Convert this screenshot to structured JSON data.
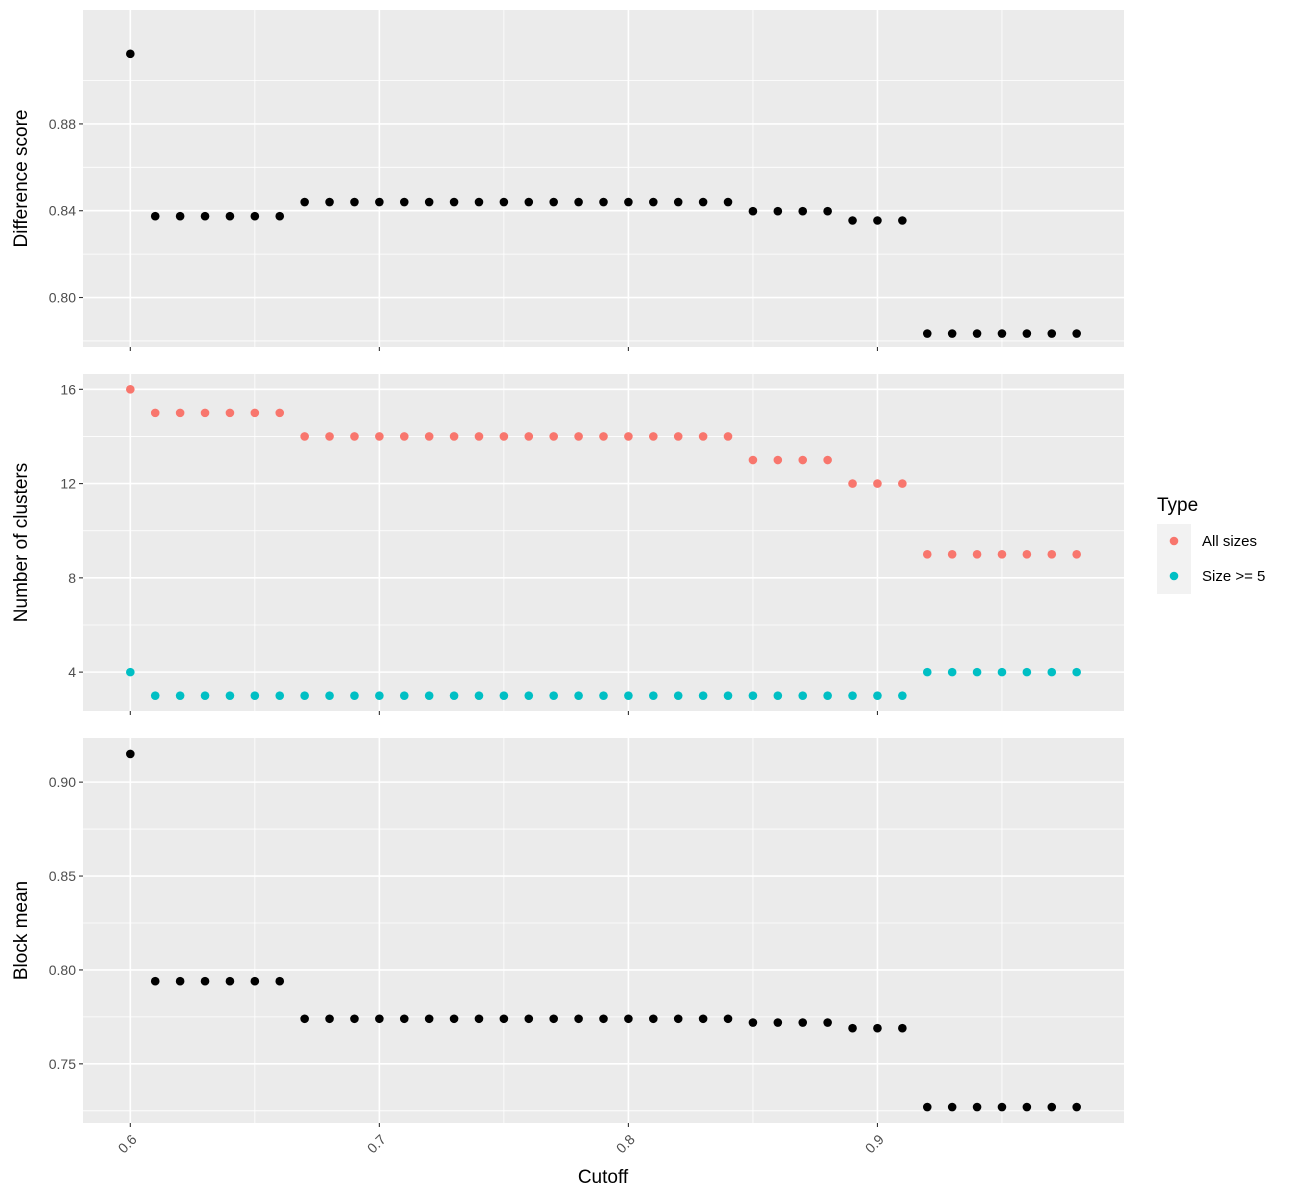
{
  "chart_data": {
    "type": "scatter",
    "x_axis": {
      "label": "Cutoff",
      "range": [
        0.581,
        0.999
      ],
      "ticks": [
        0.6,
        0.7,
        0.8,
        0.9
      ],
      "tick_labels": [
        "0.6",
        "0.7",
        "0.8",
        "0.9"
      ],
      "tick_label_rotation": "45deg"
    },
    "x": [
      0.6,
      0.61,
      0.62,
      0.63,
      0.64,
      0.65,
      0.66,
      0.67,
      0.68,
      0.69,
      0.7,
      0.71,
      0.72,
      0.73,
      0.74,
      0.75,
      0.76,
      0.77,
      0.78,
      0.79,
      0.8,
      0.81,
      0.82,
      0.83,
      0.84,
      0.85,
      0.86,
      0.87,
      0.88,
      0.89,
      0.9,
      0.91,
      0.92,
      0.93,
      0.94,
      0.95,
      0.96,
      0.97,
      0.98
    ],
    "panels": [
      {
        "ylabel": "Difference score",
        "ylim": [
          0.7772,
          0.9325
        ],
        "yticks": [
          0.8,
          0.84,
          0.88
        ],
        "ytick_labels": [
          "0.80",
          "0.84",
          "0.88"
        ],
        "series": [
          {
            "color": "#000000",
            "values": [
              0.9123,
              0.8375,
              0.8375,
              0.8375,
              0.8375,
              0.8375,
              0.8375,
              0.844,
              0.844,
              0.844,
              0.844,
              0.844,
              0.844,
              0.844,
              0.844,
              0.844,
              0.844,
              0.844,
              0.844,
              0.844,
              0.844,
              0.844,
              0.844,
              0.844,
              0.844,
              0.8398,
              0.8398,
              0.8398,
              0.8398,
              0.8355,
              0.8355,
              0.8355,
              0.7834,
              0.7834,
              0.7834,
              0.7834,
              0.7834,
              0.7834,
              0.7834
            ]
          }
        ]
      },
      {
        "ylabel": "Number of clusters",
        "ylim": [
          2.35,
          16.65
        ],
        "yticks": [
          4,
          8,
          12,
          16
        ],
        "ytick_labels": [
          "4",
          "8",
          "12",
          "16"
        ],
        "series": [
          {
            "name": "All sizes",
            "color": "#F8766D",
            "values": [
              16,
              15,
              15,
              15,
              15,
              15,
              15,
              14,
              14,
              14,
              14,
              14,
              14,
              14,
              14,
              14,
              14,
              14,
              14,
              14,
              14,
              14,
              14,
              14,
              14,
              13,
              13,
              13,
              13,
              12,
              12,
              12,
              9,
              9,
              9,
              9,
              9,
              9,
              9
            ]
          },
          {
            "name": "Size >= 5",
            "color": "#00BFC4",
            "values": [
              4,
              3,
              3,
              3,
              3,
              3,
              3,
              3,
              3,
              3,
              3,
              3,
              3,
              3,
              3,
              3,
              3,
              3,
              3,
              3,
              3,
              3,
              3,
              3,
              3,
              3,
              3,
              3,
              3,
              3,
              3,
              3,
              4,
              4,
              4,
              4,
              4,
              4,
              4
            ]
          }
        ]
      },
      {
        "ylabel": "Block mean",
        "ylim": [
          0.7185,
          0.9235
        ],
        "yticks": [
          0.75,
          0.8,
          0.85,
          0.9
        ],
        "ytick_labels": [
          "0.75",
          "0.80",
          "0.85",
          "0.90"
        ],
        "series": [
          {
            "color": "#000000",
            "values": [
              0.915,
              0.794,
              0.794,
              0.794,
              0.794,
              0.794,
              0.794,
              0.774,
              0.774,
              0.774,
              0.774,
              0.774,
              0.774,
              0.774,
              0.774,
              0.774,
              0.774,
              0.774,
              0.774,
              0.774,
              0.774,
              0.774,
              0.774,
              0.774,
              0.774,
              0.772,
              0.772,
              0.772,
              0.772,
              0.769,
              0.769,
              0.769,
              0.727,
              0.727,
              0.727,
              0.727,
              0.727,
              0.727,
              0.727
            ]
          }
        ]
      }
    ],
    "legend": {
      "title": "Type",
      "position": "right",
      "entries": [
        {
          "label": "All sizes",
          "color": "#F8766D"
        },
        {
          "label": "Size >= 5",
          "color": "#00BFC4"
        }
      ]
    },
    "grid": true,
    "panel_background": "#EBEBEB",
    "grid_color": "#FFFFFF"
  }
}
